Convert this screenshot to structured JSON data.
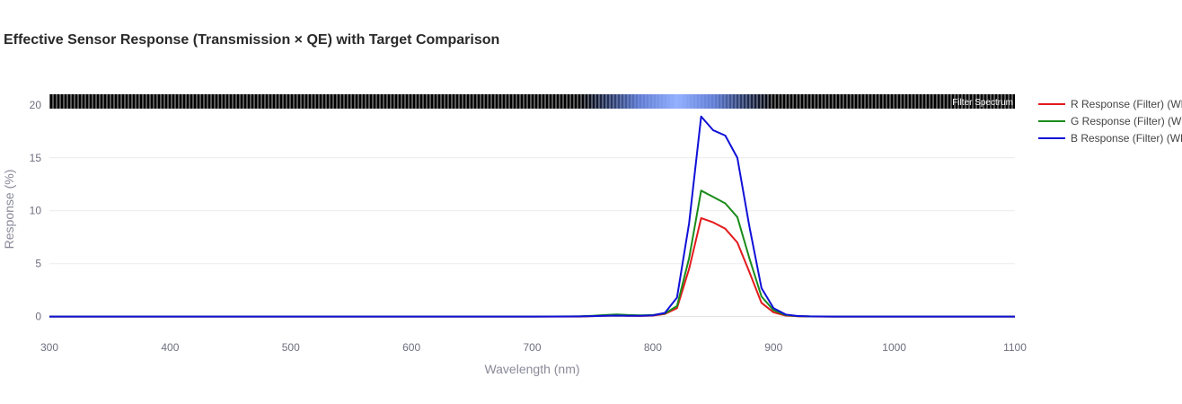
{
  "chart_data": {
    "type": "line",
    "title": "Effective Sensor Response (Transmission × QE) with Target Comparison",
    "xlabel": "Wavelength (nm)",
    "ylabel": "Response (%)",
    "xlim": [
      300,
      1100
    ],
    "ylim": [
      -1.3,
      21
    ],
    "xticks": [
      300,
      400,
      500,
      600,
      700,
      800,
      900,
      1000,
      1100
    ],
    "yticks": [
      0,
      5,
      10,
      15,
      20
    ],
    "grid": true,
    "legend_position": "right",
    "spectrum_bar_label": "Filter Spectrum",
    "x": [
      300,
      700,
      740,
      750,
      760,
      770,
      780,
      790,
      800,
      810,
      820,
      830,
      840,
      850,
      860,
      870,
      880,
      890,
      900,
      910,
      920,
      930,
      940,
      950,
      1100
    ],
    "series": [
      {
        "name": "R Response (Filter) (WB)",
        "color": "#e31a1c",
        "values": [
          0,
          0,
          0,
          0.05,
          0.08,
          0.1,
          0.08,
          0.07,
          0.1,
          0.25,
          0.8,
          4.5,
          9.3,
          8.9,
          8.3,
          7.0,
          4.2,
          1.3,
          0.4,
          0.1,
          0.03,
          0.01,
          0,
          0,
          0
        ]
      },
      {
        "name": "G Response (Filter) (WB)",
        "color": "#1a8c1a",
        "values": [
          0,
          0,
          0.03,
          0.08,
          0.15,
          0.2,
          0.15,
          0.12,
          0.15,
          0.3,
          1.0,
          5.5,
          11.9,
          11.3,
          10.7,
          9.4,
          5.5,
          1.9,
          0.6,
          0.15,
          0.05,
          0.02,
          0.01,
          0,
          0
        ]
      },
      {
        "name": "B Response (Filter) (WB)",
        "color": "#1010d8",
        "values": [
          0,
          0,
          0.02,
          0.05,
          0.08,
          0.1,
          0.08,
          0.08,
          0.12,
          0.35,
          1.8,
          8.8,
          18.9,
          17.6,
          17.1,
          15.0,
          8.5,
          2.7,
          0.8,
          0.2,
          0.06,
          0.02,
          0.01,
          0,
          0
        ]
      }
    ]
  }
}
